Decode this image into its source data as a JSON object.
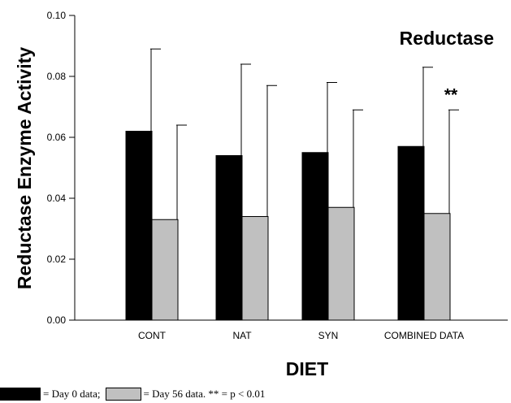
{
  "chart_data": {
    "type": "bar",
    "title": "Reductase",
    "xlabel": "DIET",
    "ylabel": "Reductase Enzyme Activity",
    "categories": [
      "CONT",
      "NAT",
      "SYN",
      "COMBINED DATA"
    ],
    "series": [
      {
        "values": [
          0.062,
          0.054,
          0.055,
          0.057
        ],
        "errors": [
          0.027,
          0.03,
          0.023,
          0.026
        ],
        "color": "#000000"
      },
      {
        "values": [
          0.033,
          0.034,
          0.037,
          0.035
        ],
        "errors": [
          0.031,
          0.043,
          0.032,
          0.034
        ],
        "color": "#c0c0c0"
      }
    ],
    "ylim": [
      0,
      0.1
    ],
    "yticks": [
      "0.00",
      "0.02",
      "0.04",
      "0.06",
      "0.08",
      "0.10"
    ],
    "annotations": [
      {
        "category": "COMBINED DATA",
        "text": "**"
      }
    ],
    "grid": false,
    "legend": {
      "position": "bottom-left",
      "day0_text": "= Day 0 data;",
      "day56_text": "= Day 56 data. ** = p < 0.01"
    }
  }
}
